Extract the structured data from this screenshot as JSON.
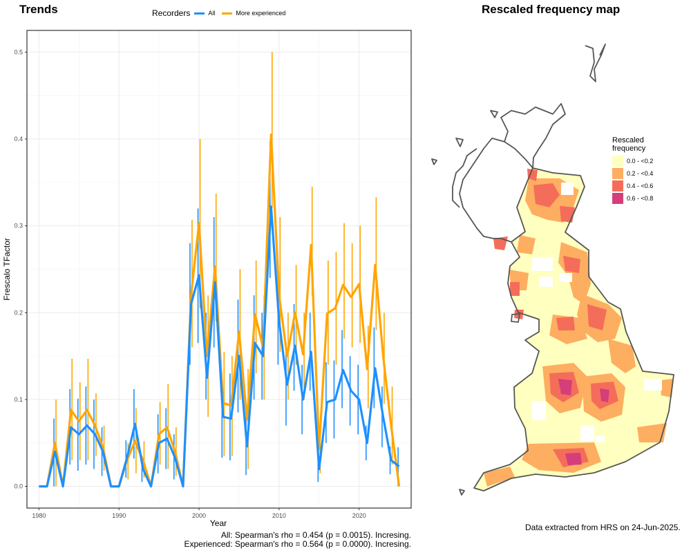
{
  "titles": {
    "left": "Trends",
    "right": "Rescaled frequency map"
  },
  "chart_data": {
    "type": "line",
    "xlabel": "Year",
    "ylabel": "Frescalo TFactor",
    "xlim": [
      1978.5,
      2026.5
    ],
    "ylim": [
      -0.025,
      0.525
    ],
    "xticks": [
      1980,
      1990,
      2000,
      2010,
      2020
    ],
    "yticks": [
      0.0,
      0.1,
      0.2,
      0.3,
      0.4,
      0.5
    ],
    "ytick_labels": [
      "0.0",
      "0.1",
      "0.2",
      "0.3",
      "0.4",
      "0.5"
    ],
    "grid": true,
    "legend_title": "Recorders",
    "legend_placement": "top",
    "series": [
      {
        "name": "All",
        "color": "#1E90FF",
        "points": [
          [
            1980,
            0.0,
            0.0,
            0.0
          ],
          [
            1981,
            0.0,
            0.0,
            0.0
          ],
          [
            1982,
            0.04,
            0.0,
            0.078
          ],
          [
            1983,
            0.0,
            0.0,
            0.0
          ],
          [
            1984,
            0.068,
            0.025,
            0.112
          ],
          [
            1985,
            0.06,
            0.018,
            0.101
          ],
          [
            1986,
            0.07,
            0.025,
            0.115
          ],
          [
            1987,
            0.06,
            0.02,
            0.1
          ],
          [
            1988,
            0.04,
            0.012,
            0.068
          ],
          [
            1989,
            0.0,
            0.0,
            0.0
          ],
          [
            1990,
            0.0,
            0.0,
            0.0
          ],
          [
            1991,
            0.033,
            0.01,
            0.053
          ],
          [
            1992,
            0.072,
            0.032,
            0.112
          ],
          [
            1993,
            0.02,
            0.005,
            0.035
          ],
          [
            1994,
            0.0,
            0.0,
            0.0
          ],
          [
            1995,
            0.05,
            0.015,
            0.083
          ],
          [
            1996,
            0.055,
            0.02,
            0.09
          ],
          [
            1997,
            0.033,
            0.008,
            0.06
          ],
          [
            1998,
            0.0,
            0.0,
            0.0
          ],
          [
            1999,
            0.21,
            0.14,
            0.28
          ],
          [
            2000,
            0.243,
            0.165,
            0.32
          ],
          [
            2001,
            0.125,
            0.1,
            0.2
          ],
          [
            2002,
            0.235,
            0.16,
            0.31
          ],
          [
            2003,
            0.08,
            0.033,
            0.13
          ],
          [
            2004,
            0.078,
            0.03,
            0.13
          ],
          [
            2005,
            0.15,
            0.085,
            0.215
          ],
          [
            2006,
            0.046,
            0.013,
            0.08
          ],
          [
            2007,
            0.165,
            0.1,
            0.22
          ],
          [
            2008,
            0.15,
            0.1,
            0.2
          ],
          [
            2009,
            0.322,
            0.24,
            0.397
          ],
          [
            2010,
            0.19,
            0.14,
            0.24
          ],
          [
            2011,
            0.117,
            0.07,
            0.165
          ],
          [
            2012,
            0.162,
            0.11,
            0.21
          ],
          [
            2013,
            0.1,
            0.06,
            0.14
          ],
          [
            2014,
            0.155,
            0.11,
            0.2
          ],
          [
            2015,
            0.02,
            0.005,
            0.037
          ],
          [
            2016,
            0.097,
            0.05,
            0.143
          ],
          [
            2017,
            0.1,
            0.055,
            0.145
          ],
          [
            2018,
            0.134,
            0.09,
            0.18
          ],
          [
            2019,
            0.11,
            0.07,
            0.15
          ],
          [
            2020,
            0.1,
            0.06,
            0.14
          ],
          [
            2021,
            0.05,
            0.03,
            0.07
          ],
          [
            2022,
            0.136,
            0.09,
            0.183
          ],
          [
            2023,
            0.08,
            0.045,
            0.115
          ],
          [
            2024,
            0.03,
            0.014,
            0.046
          ],
          [
            2025,
            0.023,
            0.0,
            0.045
          ]
        ]
      },
      {
        "name": "More experienced",
        "color": "#FFA500",
        "points": [
          [
            1980,
            0.0,
            0.0,
            0.0
          ],
          [
            1981,
            0.0,
            0.0,
            0.0
          ],
          [
            1982,
            0.05,
            0.0,
            0.1
          ],
          [
            1983,
            0.0,
            0.0,
            0.0
          ],
          [
            1984,
            0.088,
            0.03,
            0.147
          ],
          [
            1985,
            0.075,
            0.03,
            0.12
          ],
          [
            1986,
            0.088,
            0.03,
            0.147
          ],
          [
            1987,
            0.07,
            0.035,
            0.107
          ],
          [
            1988,
            0.045,
            0.018,
            0.07
          ],
          [
            1989,
            0.0,
            0.0,
            0.0
          ],
          [
            1990,
            0.0,
            0.0,
            0.0
          ],
          [
            1991,
            0.03,
            0.008,
            0.05
          ],
          [
            1992,
            0.052,
            0.015,
            0.09
          ],
          [
            1993,
            0.03,
            0.01,
            0.052
          ],
          [
            1994,
            0.0,
            0.0,
            0.0
          ],
          [
            1995,
            0.06,
            0.025,
            0.097
          ],
          [
            1996,
            0.068,
            0.02,
            0.118
          ],
          [
            1997,
            0.04,
            0.012,
            0.068
          ],
          [
            1998,
            0.0,
            0.0,
            0.0
          ],
          [
            1999,
            0.22,
            0.16,
            0.307
          ],
          [
            2000,
            0.303,
            0.205,
            0.4
          ],
          [
            2001,
            0.15,
            0.08,
            0.22
          ],
          [
            2002,
            0.253,
            0.19,
            0.337
          ],
          [
            2003,
            0.096,
            0.035,
            0.155
          ],
          [
            2004,
            0.093,
            0.035,
            0.15
          ],
          [
            2005,
            0.178,
            0.1,
            0.25
          ],
          [
            2006,
            0.077,
            0.02,
            0.135
          ],
          [
            2007,
            0.198,
            0.13,
            0.26
          ],
          [
            2008,
            0.16,
            0.1,
            0.22
          ],
          [
            2009,
            0.405,
            0.32,
            0.5
          ],
          [
            2010,
            0.22,
            0.155,
            0.31
          ],
          [
            2011,
            0.15,
            0.1,
            0.2
          ],
          [
            2012,
            0.2,
            0.14,
            0.255
          ],
          [
            2013,
            0.152,
            0.1,
            0.2
          ],
          [
            2014,
            0.278,
            0.22,
            0.345
          ],
          [
            2015,
            0.043,
            0.015,
            0.07
          ],
          [
            2016,
            0.199,
            0.14,
            0.26
          ],
          [
            2017,
            0.205,
            0.14,
            0.27
          ],
          [
            2018,
            0.232,
            0.17,
            0.303
          ],
          [
            2019,
            0.218,
            0.16,
            0.28
          ],
          [
            2020,
            0.233,
            0.165,
            0.3
          ],
          [
            2021,
            0.135,
            0.09,
            0.185
          ],
          [
            2022,
            0.255,
            0.18,
            0.333
          ],
          [
            2023,
            0.15,
            0.095,
            0.2
          ],
          [
            2024,
            0.07,
            0.025,
            0.115
          ],
          [
            2025,
            0.0,
            0.0,
            0.0
          ]
        ]
      }
    ]
  },
  "stats": {
    "all": "All: Spearman's rho = 0.454 (p = 0.0015). Incresing.",
    "experienced": "Experienced: Spearman's rho = 0.564 (p = 0.0000). Incresing."
  },
  "map": {
    "legend_title_1": "Rescaled",
    "legend_title_2": "frequency",
    "legend": [
      {
        "label": "0.0 - <0.2",
        "color": "#FFFFBF"
      },
      {
        "label": "0.2 - <0.4",
        "color": "#FDAE61"
      },
      {
        "label": "0.4 - <0.6",
        "color": "#F46D5A"
      },
      {
        "label": "0.6 - <0.8",
        "color": "#D53E7A"
      }
    ],
    "outline_color": "#555555"
  },
  "extract_note": "Data extracted from HRS on 24-Jun-2025."
}
